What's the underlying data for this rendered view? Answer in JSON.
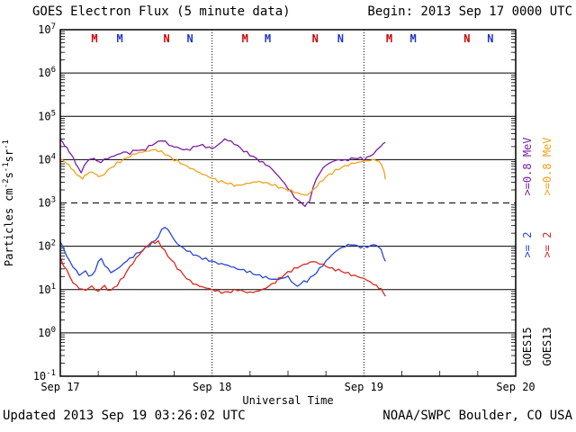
{
  "header": {
    "title": "GOES Electron Flux (5 minute data)",
    "begin_label": "Begin: 2013 Sep 17 0000 UTC"
  },
  "footer": {
    "updated_label": "Updated 2013 Sep 19 03:26:02 UTC",
    "credit_label": "NOAA/SWPC Boulder, CO USA"
  },
  "chart_data": {
    "type": "line",
    "scale": "log-y",
    "title": "GOES Electron Flux (5 minute data)",
    "xlabel": "Universal Time",
    "ylabel": "Particles cm-2s-1sr-1",
    "ylabel_parts": [
      {
        "t": "Particles cm"
      },
      {
        "t": "-2",
        "sup": true
      },
      {
        "t": "s"
      },
      {
        "t": "-1",
        "sup": true
      },
      {
        "t": "sr"
      },
      {
        "t": "-1",
        "sup": true
      }
    ],
    "ylim_exponents": [
      -1,
      7
    ],
    "y_tick_exponents": [
      7,
      6,
      5,
      4,
      3,
      2,
      1,
      0,
      -1
    ],
    "x_hours_range": [
      0,
      72
    ],
    "x_tick_hours": [
      0,
      24,
      48,
      72
    ],
    "x_tick_labels": [
      "Sep 17",
      "Sep 18",
      "Sep 19",
      "Sep 20"
    ],
    "day_line_hours": [
      24,
      48
    ],
    "threshold_flux": 1000,
    "colors": {
      "goes15_ge_0p8": "#7b1fa2",
      "goes13_ge_0p8": "#f0a31a",
      "goes15_ge_2": "#2a47d4",
      "goes13_ge_2": "#d92b20",
      "marker_goes13": "#cc0000",
      "marker_goes15": "#2233cc",
      "axis": "#000000"
    },
    "event_markers": [
      {
        "t_hours": 5.4,
        "label": "M",
        "satellite": "GOES13"
      },
      {
        "t_hours": 9.4,
        "label": "M",
        "satellite": "GOES15"
      },
      {
        "t_hours": 16.8,
        "label": "N",
        "satellite": "GOES13"
      },
      {
        "t_hours": 20.5,
        "label": "N",
        "satellite": "GOES15"
      },
      {
        "t_hours": 29.2,
        "label": "M",
        "satellite": "GOES13"
      },
      {
        "t_hours": 32.8,
        "label": "M",
        "satellite": "GOES15"
      },
      {
        "t_hours": 40.3,
        "label": "N",
        "satellite": "GOES13"
      },
      {
        "t_hours": 44.3,
        "label": "N",
        "satellite": "GOES15"
      },
      {
        "t_hours": 52.0,
        "label": "M",
        "satellite": "GOES13"
      },
      {
        "t_hours": 55.8,
        "label": "M",
        "satellite": "GOES15"
      },
      {
        "t_hours": 64.3,
        "label": "N",
        "satellite": "GOES13"
      },
      {
        "t_hours": 68.0,
        "label": "N",
        "satellite": "GOES15"
      }
    ],
    "series": [
      {
        "id": "goes15-ge0.8mev",
        "satellite": "GOES15",
        "channel": ">=0.8 MeV",
        "color": "#7b1fa2",
        "points": [
          [
            0,
            29000
          ],
          [
            0.7,
            22000
          ],
          [
            1.4,
            16000
          ],
          [
            2.1,
            11000
          ],
          [
            2.8,
            6500
          ],
          [
            3.3,
            5200
          ],
          [
            3.8,
            7000
          ],
          [
            4.3,
            9500
          ],
          [
            5,
            11000
          ],
          [
            5.7,
            9800
          ],
          [
            6.4,
            8200
          ],
          [
            7,
            10000
          ],
          [
            8,
            11500
          ],
          [
            9,
            13000
          ],
          [
            10,
            15000
          ],
          [
            11,
            14000
          ],
          [
            12,
            17000
          ],
          [
            13,
            16000
          ],
          [
            14,
            20000
          ],
          [
            15,
            24000
          ],
          [
            16,
            28000
          ],
          [
            16.6,
            25000
          ],
          [
            17.2,
            22000
          ],
          [
            18,
            20000
          ],
          [
            19,
            18000
          ],
          [
            20,
            16500
          ],
          [
            21,
            19000
          ],
          [
            22,
            22000
          ],
          [
            23,
            20000
          ],
          [
            24,
            18000
          ],
          [
            25,
            22000
          ],
          [
            26,
            30000
          ],
          [
            27,
            26000
          ],
          [
            28,
            21000
          ],
          [
            29,
            16000
          ],
          [
            30,
            13000
          ],
          [
            31,
            10500
          ],
          [
            32,
            8500
          ],
          [
            33,
            7000
          ],
          [
            34,
            5000
          ],
          [
            35,
            3400
          ],
          [
            36,
            2200
          ],
          [
            37,
            1400
          ],
          [
            38,
            1000
          ],
          [
            38.7,
            820
          ],
          [
            39.4,
            1100
          ],
          [
            40,
            2400
          ],
          [
            41,
            5000
          ],
          [
            42,
            7500
          ],
          [
            43,
            9000
          ],
          [
            44,
            10000
          ],
          [
            45,
            9500
          ],
          [
            46,
            10500
          ],
          [
            47,
            11000
          ],
          [
            48,
            10200
          ],
          [
            49,
            12000
          ],
          [
            50,
            16000
          ],
          [
            50.7,
            21000
          ],
          [
            51.4,
            25000
          ]
        ]
      },
      {
        "id": "goes13-ge0.8mev",
        "satellite": "GOES13",
        "channel": ">=0.8 MeV",
        "color": "#f0a31a",
        "points": [
          [
            0,
            10500
          ],
          [
            0.7,
            9200
          ],
          [
            1.4,
            7500
          ],
          [
            2.1,
            5500
          ],
          [
            2.8,
            4200
          ],
          [
            3.5,
            3600
          ],
          [
            4.2,
            4500
          ],
          [
            5,
            5200
          ],
          [
            5.7,
            4300
          ],
          [
            6.4,
            3900
          ],
          [
            7,
            4800
          ],
          [
            8,
            6500
          ],
          [
            9,
            8200
          ],
          [
            10,
            10000
          ],
          [
            11,
            12000
          ],
          [
            12,
            14000
          ],
          [
            13,
            15000
          ],
          [
            14,
            16000
          ],
          [
            15,
            17000
          ],
          [
            16,
            15000
          ],
          [
            17,
            12500
          ],
          [
            18,
            10000
          ],
          [
            19,
            8500
          ],
          [
            20,
            7000
          ],
          [
            21,
            6000
          ],
          [
            22,
            5000
          ],
          [
            23,
            4300
          ],
          [
            24,
            3700
          ],
          [
            25,
            3200
          ],
          [
            26,
            3000
          ],
          [
            27,
            2700
          ],
          [
            28,
            2500
          ],
          [
            29,
            2700
          ],
          [
            30,
            2900
          ],
          [
            31,
            3100
          ],
          [
            32,
            3000
          ],
          [
            33,
            2800
          ],
          [
            34,
            2500
          ],
          [
            35,
            2200
          ],
          [
            36,
            2000
          ],
          [
            37,
            1800
          ],
          [
            38,
            1600
          ],
          [
            39,
            1500
          ],
          [
            40,
            2000
          ],
          [
            41,
            2900
          ],
          [
            42,
            4000
          ],
          [
            43,
            5000
          ],
          [
            44,
            6100
          ],
          [
            45,
            7100
          ],
          [
            46,
            8000
          ],
          [
            47,
            8600
          ],
          [
            48,
            9200
          ],
          [
            49,
            9600
          ],
          [
            50,
            10000
          ],
          [
            50.8,
            7800
          ],
          [
            51.2,
            5000
          ],
          [
            51.4,
            3500
          ]
        ]
      },
      {
        "id": "goes15-ge2mev",
        "satellite": "GOES15",
        "channel": ">= 2",
        "color": "#2a47d4",
        "points": [
          [
            0,
            130
          ],
          [
            0.5,
            90
          ],
          [
            1,
            60
          ],
          [
            1.5,
            45
          ],
          [
            2,
            34
          ],
          [
            2.5,
            27
          ],
          [
            3,
            22
          ],
          [
            3.5,
            24
          ],
          [
            4,
            26
          ],
          [
            4.5,
            22
          ],
          [
            5,
            20
          ],
          [
            5.5,
            28
          ],
          [
            6,
            45
          ],
          [
            6.5,
            50
          ],
          [
            7,
            38
          ],
          [
            7.5,
            30
          ],
          [
            8,
            25
          ],
          [
            8.5,
            27
          ],
          [
            9,
            30
          ],
          [
            9.5,
            34
          ],
          [
            10,
            40
          ],
          [
            10.5,
            46
          ],
          [
            11,
            52
          ],
          [
            11.5,
            58
          ],
          [
            12,
            66
          ],
          [
            13,
            80
          ],
          [
            14,
            105
          ],
          [
            15,
            135
          ],
          [
            15.5,
            170
          ],
          [
            16,
            230
          ],
          [
            16.5,
            285
          ],
          [
            17,
            240
          ],
          [
            17.5,
            190
          ],
          [
            18,
            140
          ],
          [
            18.5,
            115
          ],
          [
            19,
            100
          ],
          [
            20,
            80
          ],
          [
            21,
            66
          ],
          [
            22,
            56
          ],
          [
            23,
            50
          ],
          [
            24,
            45
          ],
          [
            25,
            40
          ],
          [
            26,
            38
          ],
          [
            27,
            34
          ],
          [
            28,
            30
          ],
          [
            29,
            28
          ],
          [
            30,
            25
          ],
          [
            31,
            22
          ],
          [
            32,
            20
          ],
          [
            33,
            18
          ],
          [
            34,
            17
          ],
          [
            35,
            18
          ],
          [
            36,
            20
          ],
          [
            36.5,
            16
          ],
          [
            37,
            13
          ],
          [
            37.5,
            12
          ],
          [
            38,
            14
          ],
          [
            39,
            16
          ],
          [
            40,
            21
          ],
          [
            41,
            30
          ],
          [
            42,
            45
          ],
          [
            43,
            65
          ],
          [
            44,
            85
          ],
          [
            45,
            100
          ],
          [
            46,
            112
          ],
          [
            47,
            100
          ],
          [
            48,
            95
          ],
          [
            49,
            102
          ],
          [
            50,
            110
          ],
          [
            50.7,
            85
          ],
          [
            51.1,
            60
          ],
          [
            51.4,
            45
          ]
        ]
      },
      {
        "id": "goes13-ge2mev",
        "satellite": "GOES13",
        "channel": ">= 2",
        "color": "#d92b20",
        "points": [
          [
            0,
            52
          ],
          [
            0.5,
            38
          ],
          [
            1,
            28
          ],
          [
            1.5,
            20
          ],
          [
            2,
            15
          ],
          [
            2.5,
            12
          ],
          [
            3,
            11
          ],
          [
            3.5,
            10
          ],
          [
            4,
            9.5
          ],
          [
            4.5,
            11
          ],
          [
            5,
            12
          ],
          [
            5.5,
            10
          ],
          [
            6,
            9
          ],
          [
            6.5,
            11
          ],
          [
            7,
            12
          ],
          [
            7.5,
            10
          ],
          [
            8,
            9.5
          ],
          [
            8.5,
            11
          ],
          [
            9,
            13
          ],
          [
            9.5,
            16
          ],
          [
            10,
            20
          ],
          [
            10.5,
            26
          ],
          [
            11,
            33
          ],
          [
            11.5,
            42
          ],
          [
            12,
            52
          ],
          [
            12.5,
            65
          ],
          [
            13,
            80
          ],
          [
            13.5,
            95
          ],
          [
            14,
            110
          ],
          [
            14.5,
            128
          ],
          [
            15,
            118
          ],
          [
            15.5,
            130
          ],
          [
            16,
            100
          ],
          [
            16.5,
            78
          ],
          [
            17,
            60
          ],
          [
            17.5,
            50
          ],
          [
            18,
            40
          ],
          [
            18.5,
            32
          ],
          [
            19,
            26
          ],
          [
            19.5,
            22
          ],
          [
            20,
            18
          ],
          [
            21,
            14
          ],
          [
            22,
            12
          ],
          [
            23,
            11
          ],
          [
            24,
            10
          ],
          [
            25,
            9
          ],
          [
            26,
            8.5
          ],
          [
            27,
            9
          ],
          [
            28,
            10
          ],
          [
            29,
            9
          ],
          [
            30,
            8.5
          ],
          [
            31,
            9
          ],
          [
            32,
            10
          ],
          [
            33,
            12
          ],
          [
            34,
            15
          ],
          [
            35,
            20
          ],
          [
            36,
            25
          ],
          [
            37,
            30
          ],
          [
            38,
            35
          ],
          [
            39,
            40
          ],
          [
            40,
            45
          ],
          [
            40.5,
            42
          ],
          [
            41,
            40
          ],
          [
            42,
            35
          ],
          [
            43,
            30
          ],
          [
            44,
            28
          ],
          [
            45,
            25
          ],
          [
            46,
            22
          ],
          [
            47,
            20
          ],
          [
            48,
            18
          ],
          [
            49,
            15
          ],
          [
            50,
            12
          ],
          [
            50.7,
            10
          ],
          [
            51.1,
            8.5
          ],
          [
            51.4,
            7
          ]
        ]
      }
    ],
    "right_labels": {
      "columns": [
        {
          "satellite": "GOES15",
          "entries": [
            {
              "text": ">=0.8 MeV",
              "color": "#7b1fa2"
            },
            {
              "text": ">= 2",
              "color": "#2a47d4"
            },
            {
              "text": "GOES15",
              "color": "#000000"
            }
          ]
        },
        {
          "satellite": "GOES13",
          "entries": [
            {
              "text": ">=0.8 MeV",
              "color": "#f0a31a"
            },
            {
              "text": ">= 2",
              "color": "#d92b20"
            },
            {
              "text": "GOES13",
              "color": "#000000"
            }
          ]
        }
      ]
    },
    "legend_position": "right",
    "grid": "decade horizontal lines, dotted day boundaries"
  }
}
